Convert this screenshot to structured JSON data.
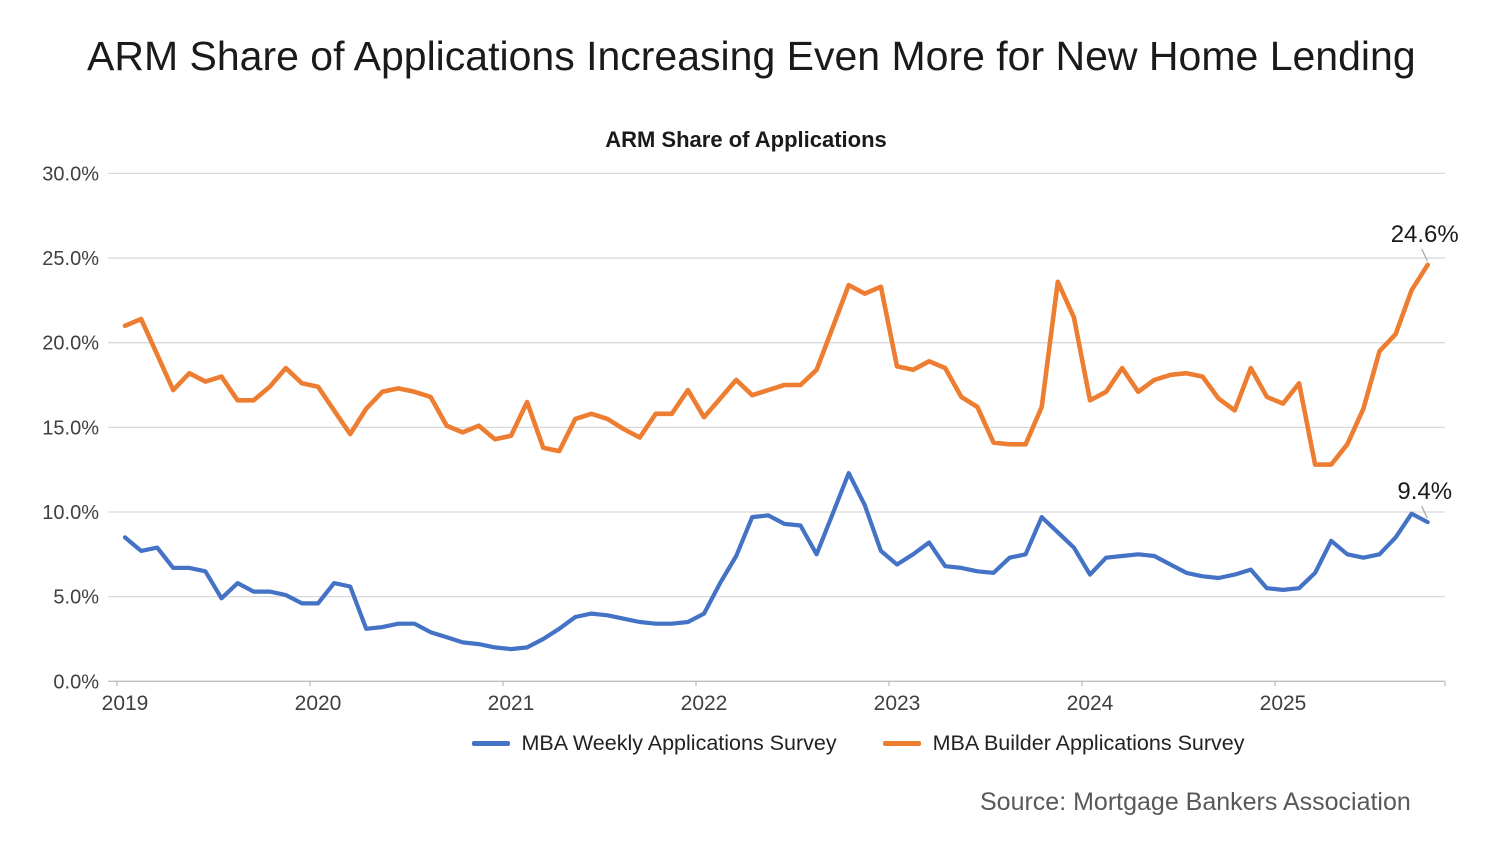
{
  "header": {
    "title": "ARM Share of Applications Increasing Even More for New Home Lending"
  },
  "footer": {
    "source": "Source: Mortgage Bankers Association"
  },
  "colors": {
    "weekly_line": "#4472C4",
    "builder_line": "#ED7D31",
    "gridline": "#D9D9D9",
    "axis_line": "#BFBFBF",
    "axis_text": "#404040",
    "annotation_text": "#1a1a1a",
    "leader_line": "#A6A6A6",
    "background": "#FFFFFF"
  },
  "chart_data": {
    "type": "line",
    "title": "ARM Share of Applications",
    "xlabel": "",
    "ylabel": "",
    "x_start": "2019-01",
    "x_end": "2025-10",
    "x_frequency": "monthly",
    "grid": true,
    "legend_position": "bottom",
    "ylim": [
      0,
      30
    ],
    "x_tick_labels": [
      "2019",
      "2020",
      "2021",
      "2022",
      "2023",
      "2024",
      "2025"
    ],
    "y_ticks": [
      {
        "value": 0,
        "label": "0.0%"
      },
      {
        "value": 5,
        "label": "5.0%"
      },
      {
        "value": 10,
        "label": "10.0%"
      },
      {
        "value": 15,
        "label": "15.0%"
      },
      {
        "value": 20,
        "label": "20.0%"
      },
      {
        "value": 25,
        "label": "25.0%"
      },
      {
        "value": 30,
        "label": "30.0%"
      }
    ],
    "series": [
      {
        "name": "MBA Weekly Applications Survey",
        "color": "#4472C4",
        "values": [
          8.5,
          7.7,
          7.9,
          6.7,
          6.7,
          6.5,
          4.9,
          5.8,
          5.3,
          5.3,
          5.1,
          4.6,
          4.6,
          5.8,
          5.6,
          3.1,
          3.2,
          3.4,
          3.4,
          2.9,
          2.6,
          2.3,
          2.2,
          2.0,
          1.9,
          2.0,
          2.5,
          3.1,
          3.8,
          4.0,
          3.9,
          3.7,
          3.5,
          3.4,
          3.4,
          3.5,
          4.0,
          5.8,
          7.4,
          9.7,
          9.8,
          9.3,
          9.2,
          7.5,
          9.9,
          12.3,
          10.4,
          7.7,
          6.9,
          7.5,
          8.2,
          6.8,
          6.7,
          6.5,
          6.4,
          7.3,
          7.5,
          9.7,
          8.8,
          7.9,
          6.3,
          7.3,
          7.4,
          7.5,
          7.4,
          6.9,
          6.4,
          6.2,
          6.1,
          6.3,
          6.6,
          5.5,
          5.4,
          5.5,
          6.4,
          8.3,
          7.5,
          7.3,
          7.5,
          8.5,
          9.9,
          9.4
        ]
      },
      {
        "name": "MBA Builder Applications Survey",
        "color": "#ED7D31",
        "values": [
          21.0,
          21.4,
          19.3,
          17.2,
          18.2,
          17.7,
          18.0,
          16.6,
          16.6,
          17.4,
          18.5,
          17.6,
          17.4,
          16.0,
          14.6,
          16.1,
          17.1,
          17.3,
          17.1,
          16.8,
          15.1,
          14.7,
          15.1,
          14.3,
          14.5,
          16.5,
          13.8,
          13.6,
          15.5,
          15.8,
          15.5,
          14.9,
          14.4,
          15.8,
          15.8,
          17.2,
          15.6,
          16.7,
          17.8,
          16.9,
          17.2,
          17.5,
          17.5,
          18.4,
          20.9,
          23.4,
          22.9,
          23.3,
          18.6,
          18.4,
          18.9,
          18.5,
          16.8,
          16.2,
          14.1,
          14.0,
          14.0,
          16.2,
          23.6,
          21.5,
          16.6,
          17.1,
          18.5,
          17.1,
          17.8,
          18.1,
          18.2,
          18.0,
          16.7,
          16.0,
          18.5,
          16.8,
          16.4,
          17.6,
          12.8,
          12.8,
          14.0,
          16.1,
          19.5,
          20.5,
          23.1,
          24.6
        ]
      }
    ],
    "annotations": [
      {
        "series_index": 1,
        "text": "24.6%"
      },
      {
        "series_index": 0,
        "text": "9.4%"
      }
    ]
  }
}
